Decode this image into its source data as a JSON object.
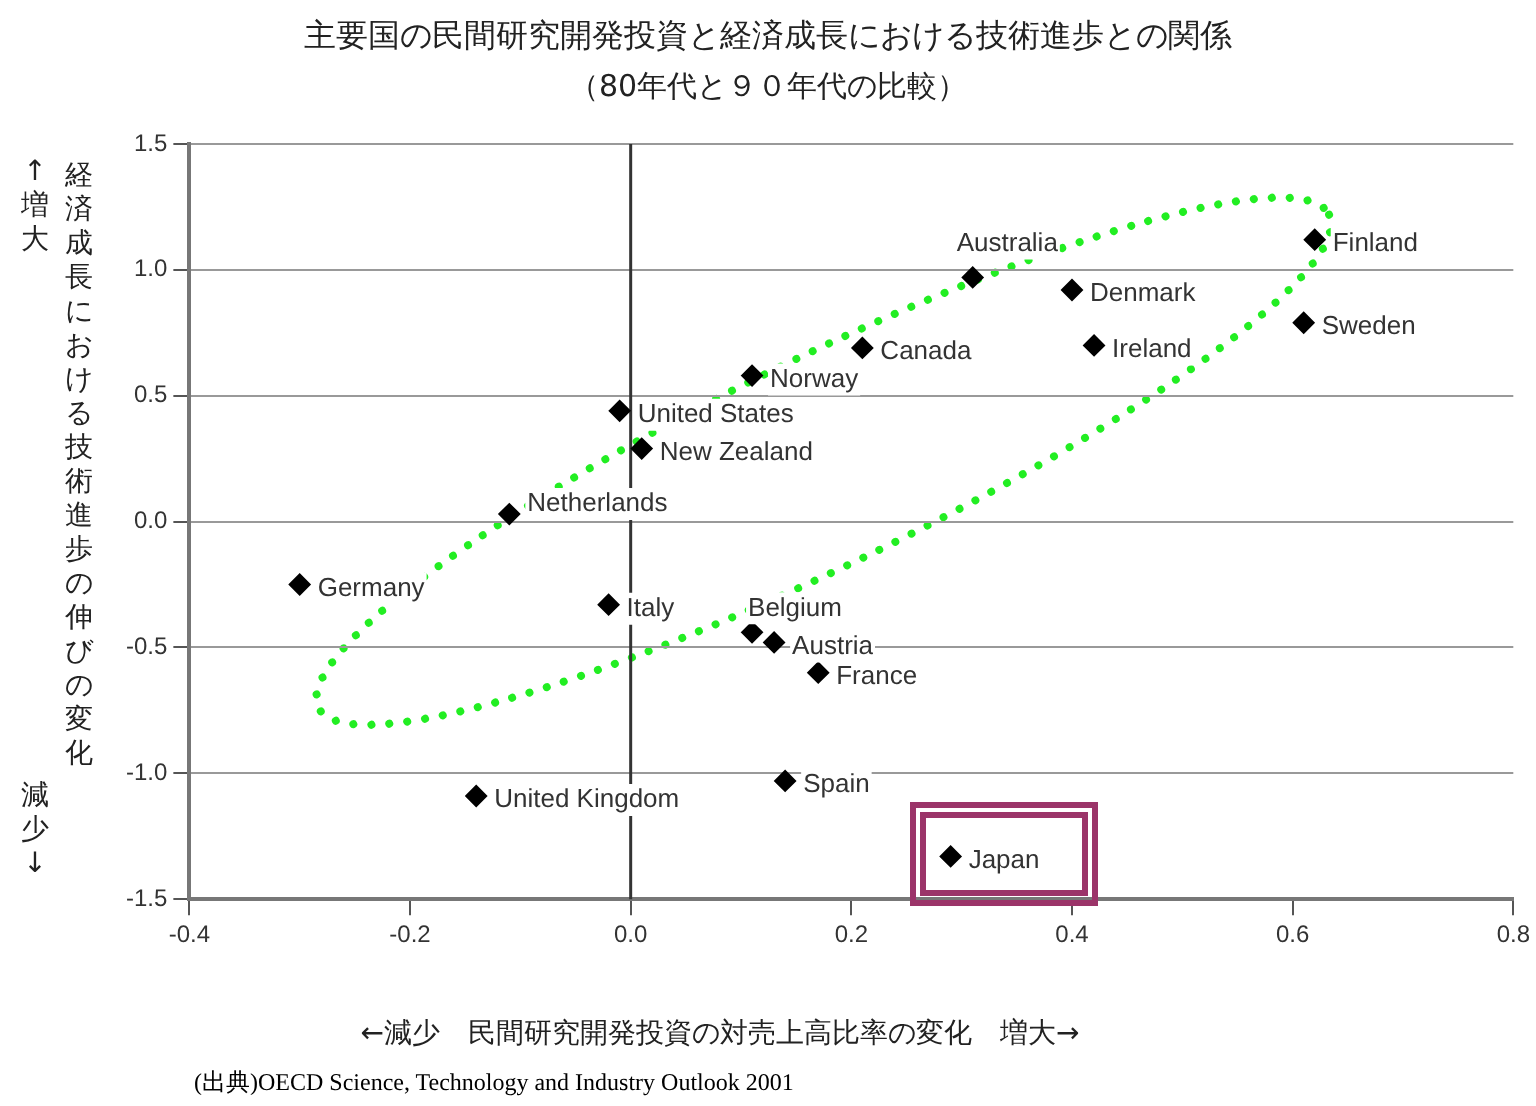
{
  "chart_data": {
    "type": "scatter",
    "title": "主要国の民間研究開発投資と経済成長における技術進歩との関係",
    "subtitle": "（80年代と９０年代の比較）",
    "xlabel": "←減少　民間研究開発投資の対売上高比率の変化　増大→",
    "ylabel": "経済成長における技術進歩の伸びの変化",
    "xlim": [
      -0.4,
      0.8
    ],
    "xticks": [
      -0.4,
      -0.2,
      {
        "value": 0,
        "label": "0.0"
      },
      0.2,
      0.4,
      0.6,
      0.8
    ],
    "ylim": [
      -1.5,
      1.5
    ],
    "yticks": [
      -1.5,
      {
        "value": -1,
        "label": "-1.0"
      },
      -0.5,
      {
        "value": 0,
        "label": "0.0"
      },
      0.5,
      {
        "value": 1,
        "label": "1.0"
      },
      1.5
    ],
    "grid": "y",
    "legend": false,
    "marker": "diamond",
    "ref_lines": [
      {
        "axis": "x",
        "value": 0,
        "color": "#333333"
      }
    ],
    "series": [
      {
        "name": "Finland",
        "color": "#000000",
        "x": [
          0.62
        ],
        "values": [
          1.12
        ]
      },
      {
        "name": "Australia",
        "color": "#000000",
        "x": [
          0.31
        ],
        "values": [
          0.97
        ]
      },
      {
        "name": "Denmark",
        "color": "#000000",
        "x": [
          0.4
        ],
        "values": [
          0.92
        ]
      },
      {
        "name": "Sweden",
        "color": "#000000",
        "x": [
          0.61
        ],
        "values": [
          0.79
        ]
      },
      {
        "name": "Ireland",
        "color": "#000000",
        "x": [
          0.42
        ],
        "values": [
          0.7
        ]
      },
      {
        "name": "Canada",
        "color": "#000000",
        "x": [
          0.21
        ],
        "values": [
          0.69
        ]
      },
      {
        "name": "Norway",
        "color": "#000000",
        "x": [
          0.11
        ],
        "values": [
          0.58
        ]
      },
      {
        "name": "United States",
        "color": "#000000",
        "x": [
          -0.01
        ],
        "values": [
          0.44
        ]
      },
      {
        "name": "New Zealand",
        "color": "#000000",
        "x": [
          0.01
        ],
        "values": [
          0.29
        ]
      },
      {
        "name": "Netherlands",
        "color": "#000000",
        "x": [
          -0.11
        ],
        "values": [
          0.03
        ]
      },
      {
        "name": "Germany",
        "color": "#000000",
        "x": [
          -0.3
        ],
        "values": [
          -0.25
        ]
      },
      {
        "name": "Italy",
        "color": "#000000",
        "x": [
          -0.02
        ],
        "values": [
          -0.33
        ]
      },
      {
        "name": "Belgium",
        "color": "#000000",
        "x": [
          0.11
        ],
        "values": [
          -0.44
        ]
      },
      {
        "name": "Austria",
        "color": "#000000",
        "x": [
          0.13
        ],
        "values": [
          -0.48
        ]
      },
      {
        "name": "France",
        "color": "#000000",
        "x": [
          0.17
        ],
        "values": [
          -0.6
        ]
      },
      {
        "name": "Spain",
        "color": "#000000",
        "x": [
          0.14
        ],
        "values": [
          -1.03
        ]
      },
      {
        "name": "United Kingdom",
        "color": "#000000",
        "x": [
          -0.14
        ],
        "values": [
          -1.09
        ]
      },
      {
        "name": "Japan",
        "color": "#000000",
        "x": [
          0.29
        ],
        "values": [
          -1.33
        ]
      }
    ],
    "annotations": [
      "↑増大",
      "減少↓",
      "(出典)OECD Science, Technology and Industry Outlook 2001"
    ]
  }
}
